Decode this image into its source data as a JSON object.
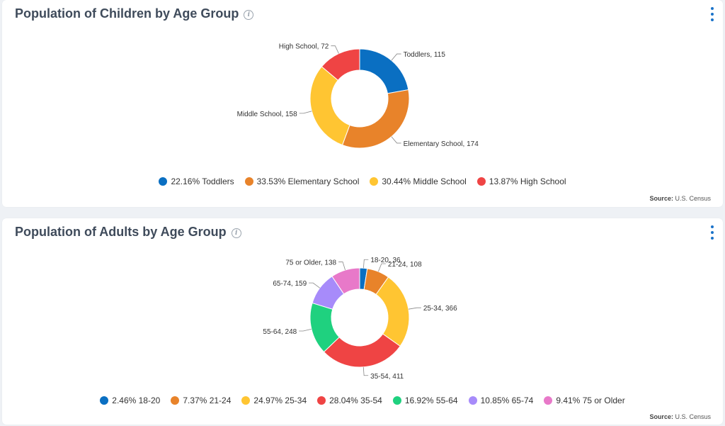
{
  "colors": {
    "blue": "#0a6fc2",
    "orange": "#e8832a",
    "yellow": "#ffc532",
    "red": "#ef4444",
    "green": "#1fd17f",
    "purple": "#a78bfa",
    "pink": "#e879c9",
    "title": "#3f4b5b",
    "menu": "#1a73c9"
  },
  "children_card": {
    "title": "Population of Children by Age Group",
    "info_icon": "info-circle-icon",
    "menu_icon": "vertical-ellipsis-icon",
    "source_label": "Source:",
    "source_value": "U.S. Census",
    "legend": [
      {
        "label": "22.16% Toddlers",
        "color": "#0a6fc2"
      },
      {
        "label": "33.53% Elementary School",
        "color": "#e8832a"
      },
      {
        "label": "30.44% Middle School",
        "color": "#ffc532"
      },
      {
        "label": "13.87% High School",
        "color": "#ef4444"
      }
    ]
  },
  "adults_card": {
    "title": "Population of Adults by Age Group",
    "info_icon": "info-circle-icon",
    "menu_icon": "vertical-ellipsis-icon",
    "source_label": "Source:",
    "source_value": "U.S. Census",
    "legend": [
      {
        "label": "2.46% 18-20",
        "color": "#0a6fc2"
      },
      {
        "label": "7.37% 21-24",
        "color": "#e8832a"
      },
      {
        "label": "24.97% 25-34",
        "color": "#ffc532"
      },
      {
        "label": "28.04% 35-54",
        "color": "#ef4444"
      },
      {
        "label": "16.92% 55-64",
        "color": "#1fd17f"
      },
      {
        "label": "10.85% 65-74",
        "color": "#a78bfa"
      },
      {
        "label": "9.41% 75 or Older",
        "color": "#e879c9"
      }
    ]
  },
  "chart_data": [
    {
      "type": "pie",
      "title": "Population of Children by Age Group",
      "donut": true,
      "categories": [
        "Toddlers",
        "Elementary School",
        "Middle School",
        "High School"
      ],
      "values": [
        115,
        174,
        158,
        72
      ],
      "percentages": [
        22.16,
        33.53,
        30.44,
        13.87
      ],
      "colors": [
        "#0a6fc2",
        "#e8832a",
        "#ffc532",
        "#ef4444"
      ],
      "data_labels": [
        "Toddlers, 115",
        "Elementary School, 174",
        "Middle School, 158",
        "High School, 72"
      ],
      "legend_position": "bottom"
    },
    {
      "type": "pie",
      "title": "Population of Adults by Age Group",
      "donut": true,
      "categories": [
        "18-20",
        "21-24",
        "25-34",
        "35-54",
        "55-64",
        "65-74",
        "75 or Older"
      ],
      "values": [
        36,
        108,
        366,
        411,
        248,
        159,
        138
      ],
      "percentages": [
        2.46,
        7.37,
        24.97,
        28.04,
        16.92,
        10.85,
        9.41
      ],
      "colors": [
        "#0a6fc2",
        "#e8832a",
        "#ffc532",
        "#ef4444",
        "#1fd17f",
        "#a78bfa",
        "#e879c9"
      ],
      "data_labels": [
        "18-20, 36",
        "21-24, 108",
        "25-34, 366",
        "35-54, 411",
        "55-64, 248",
        "65-74, 159",
        "75 or Older, 138"
      ],
      "legend_position": "bottom"
    }
  ]
}
